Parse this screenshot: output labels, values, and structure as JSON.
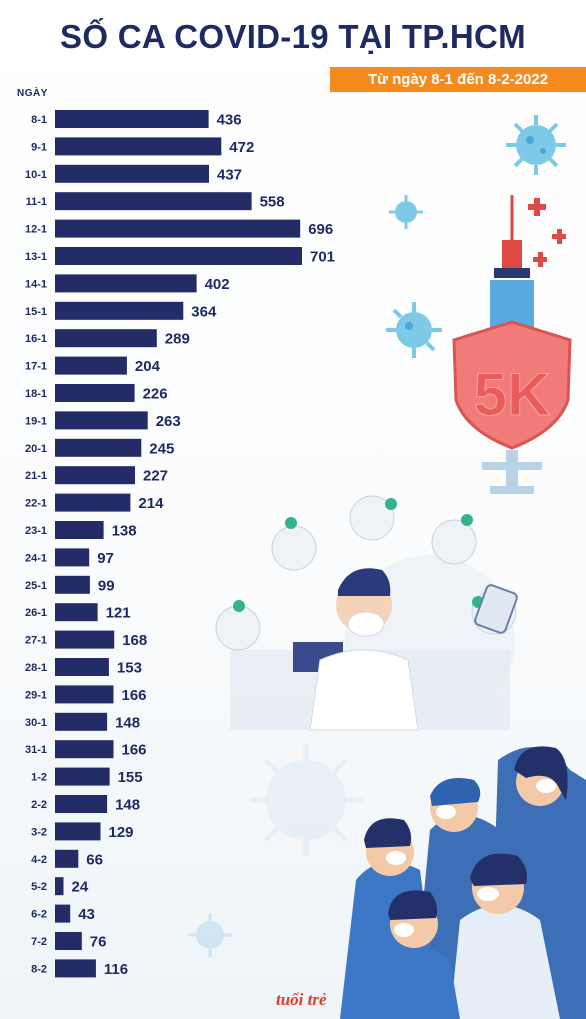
{
  "title": "SỐ CA COVID-19 TẠI TP.HCM",
  "subtitle": "Từ ngày 8-1 đến 8-2-2022",
  "colors": {
    "bar": "#232c66",
    "title": "#1f2a63",
    "subtitle_bg": "#f58a1f",
    "shield": "#f07b79",
    "virus": "#7ec8e8"
  },
  "icons": [
    "virus-icon",
    "syringe-icon",
    "shield-5k-icon",
    "doctor-illustration",
    "people-illustration"
  ],
  "decor": {
    "shield_text": "5K",
    "logo": "tuổi trẻ"
  },
  "chart_data": {
    "type": "bar",
    "orientation": "horizontal",
    "ylabel": "NGÀY",
    "categories": [
      "8-1",
      "9-1",
      "10-1",
      "11-1",
      "12-1",
      "13-1",
      "14-1",
      "15-1",
      "16-1",
      "17-1",
      "18-1",
      "19-1",
      "20-1",
      "21-1",
      "22-1",
      "23-1",
      "24-1",
      "25-1",
      "26-1",
      "27-1",
      "28-1",
      "29-1",
      "30-1",
      "31-1",
      "1-2",
      "2-2",
      "3-2",
      "4-2",
      "5-2",
      "6-2",
      "7-2",
      "8-2"
    ],
    "values": [
      436,
      472,
      437,
      558,
      696,
      701,
      402,
      364,
      289,
      204,
      226,
      263,
      245,
      227,
      214,
      138,
      97,
      99,
      121,
      168,
      153,
      166,
      148,
      166,
      155,
      148,
      129,
      66,
      24,
      43,
      76,
      116
    ],
    "grid": false,
    "legend": "none"
  }
}
